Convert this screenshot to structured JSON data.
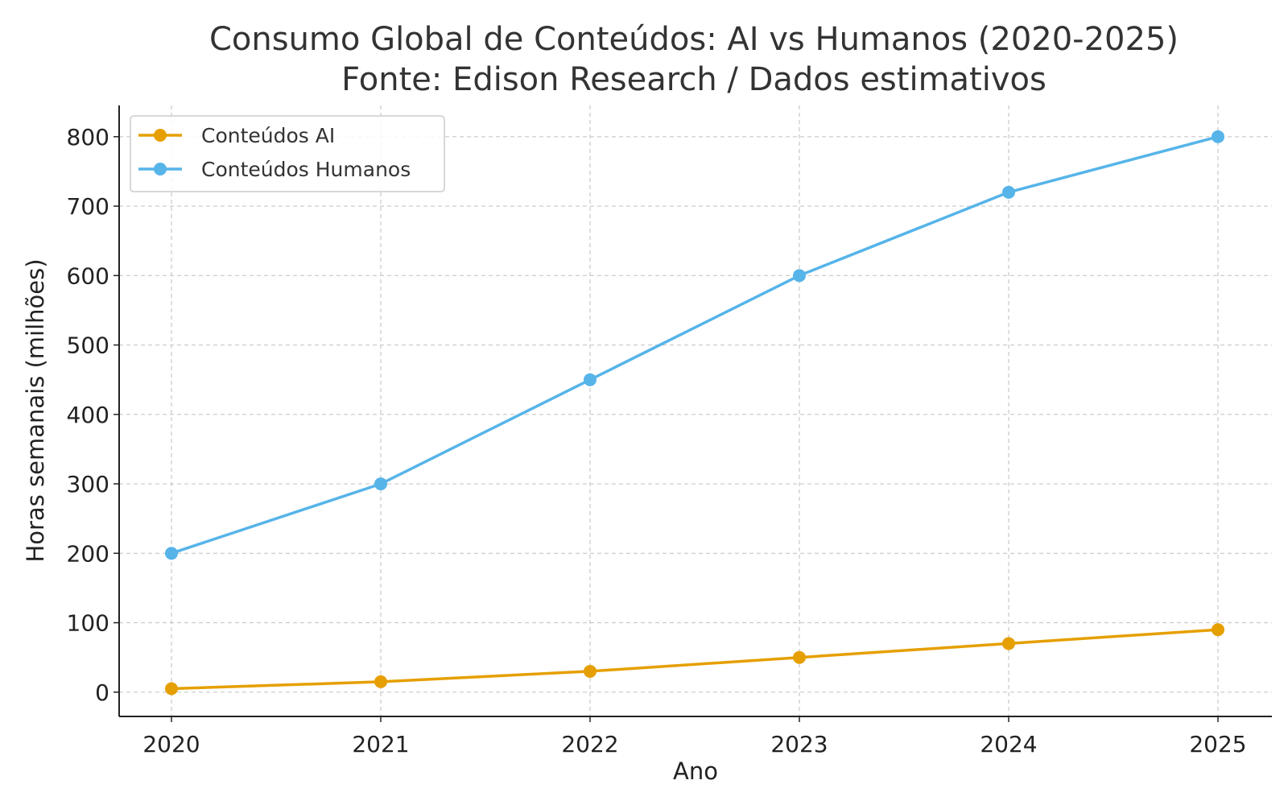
{
  "chart_data": {
    "type": "line",
    "title": "Consumo Global de Conteúdos: AI vs Humanos (2020-2025)",
    "subtitle": "Fonte: Edison Research / Dados estimativos",
    "xlabel": "Ano",
    "ylabel": "Horas semanais (milhões)",
    "x": [
      "2020",
      "2021",
      "2022",
      "2023",
      "2024",
      "2025"
    ],
    "ylim": [
      -35,
      845
    ],
    "yticks": [
      0,
      100,
      200,
      300,
      400,
      500,
      600,
      700,
      800
    ],
    "grid": true,
    "legend_position": "top-left",
    "series": [
      {
        "name": "Conteúdos AI",
        "color": "#E69F00",
        "values": [
          5,
          15,
          30,
          50,
          70,
          90
        ]
      },
      {
        "name": "Conteúdos Humanos",
        "color": "#56B4E9",
        "values": [
          200,
          300,
          450,
          600,
          720,
          800
        ]
      }
    ]
  }
}
